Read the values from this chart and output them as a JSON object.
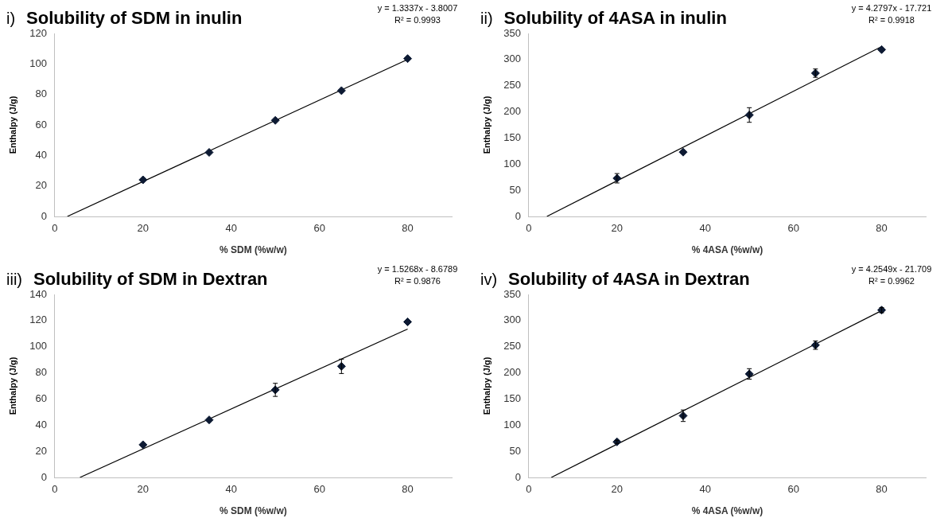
{
  "chart_data": [
    {
      "type": "scatter",
      "title": "Solubility of SDM in inulin",
      "xlabel": "% SDM (%w/w)",
      "ylabel": "Enthalpy (J/g)",
      "annotations": [
        "i)",
        "y = 1.3337x - 3.8007",
        "R² = 0.9993"
      ],
      "x": [
        20,
        35,
        50,
        65,
        80
      ],
      "xlim": [
        0,
        90
      ],
      "xticks": [
        0,
        20,
        40,
        60,
        80
      ],
      "ylim": [
        0,
        120
      ],
      "yticks": [
        0,
        20,
        40,
        60,
        80,
        100,
        120
      ],
      "grid": false,
      "legend": false,
      "series": [
        {
          "color": "#0d1a33",
          "marker": "diamond",
          "values": [
            24,
            42,
            63,
            82.5,
            103.5
          ]
        },
        {
          "type": "line",
          "color": "#000000",
          "x": [
            2.85,
            80
          ],
          "values": [
            0,
            102.9
          ]
        }
      ]
    },
    {
      "type": "scatter",
      "title": "Solubility of 4ASA in inulin",
      "xlabel": "% 4ASA (%w/w)",
      "ylabel": "Enthalpy (J/g)",
      "annotations": [
        "ii)",
        "y = 4.2797x - 17.721",
        "R² = 0.9918"
      ],
      "x": [
        20,
        35,
        50,
        65,
        80
      ],
      "xlim": [
        0,
        90
      ],
      "xticks": [
        0,
        20,
        40,
        60,
        80
      ],
      "ylim": [
        0,
        350
      ],
      "yticks": [
        0,
        50,
        100,
        150,
        200,
        250,
        300,
        350
      ],
      "grid": false,
      "legend": false,
      "series": [
        {
          "color": "#0d1a33",
          "marker": "diamond",
          "values": [
            73,
            123,
            194,
            274,
            319
          ],
          "errors": [
            9,
            null,
            14,
            8,
            null
          ]
        },
        {
          "type": "line",
          "color": "#000000",
          "x": [
            4.1,
            80
          ],
          "values": [
            0,
            325
          ]
        }
      ]
    },
    {
      "type": "scatter",
      "title": "Solubility of SDM in Dextran",
      "xlabel": "% SDM (%w/w)",
      "ylabel": "Enthalpy (J/g)",
      "annotations": [
        "iii)",
        "y = 1.5268x - 8.6789",
        "R² = 0.9876"
      ],
      "x": [
        20,
        35,
        50,
        65,
        80
      ],
      "xlim": [
        0,
        90
      ],
      "xticks": [
        0,
        20,
        40,
        60,
        80
      ],
      "ylim": [
        0,
        140
      ],
      "yticks": [
        0,
        20,
        40,
        60,
        80,
        100,
        120,
        140
      ],
      "grid": false,
      "legend": false,
      "series": [
        {
          "color": "#0d1a33",
          "marker": "diamond",
          "values": [
            25,
            44,
            67,
            85,
            119
          ],
          "errors": [
            null,
            null,
            5,
            5.5,
            null
          ]
        },
        {
          "type": "line",
          "color": "#000000",
          "x": [
            5.7,
            80
          ],
          "values": [
            0,
            113.5
          ]
        }
      ]
    },
    {
      "type": "scatter",
      "title": "Solubility of 4ASA in Dextran",
      "xlabel": "% 4ASA (%w/w)",
      "ylabel": "Enthalpy (J/g)",
      "annotations": [
        "iv)",
        "y = 4.2549x - 21.709",
        "R² = 0.9962"
      ],
      "x": [
        20,
        35,
        50,
        65,
        80
      ],
      "xlim": [
        0,
        90
      ],
      "xticks": [
        0,
        20,
        40,
        60,
        80
      ],
      "ylim": [
        0,
        350
      ],
      "yticks": [
        0,
        50,
        100,
        150,
        200,
        250,
        300,
        350
      ],
      "grid": false,
      "legend": false,
      "series": [
        {
          "color": "#0d1a33",
          "marker": "diamond",
          "values": [
            68,
            118,
            198,
            253,
            320
          ],
          "errors": [
            3,
            11,
            10,
            8,
            5
          ]
        },
        {
          "type": "line",
          "color": "#000000",
          "x": [
            5.1,
            80
          ],
          "values": [
            0,
            319
          ]
        }
      ]
    }
  ]
}
